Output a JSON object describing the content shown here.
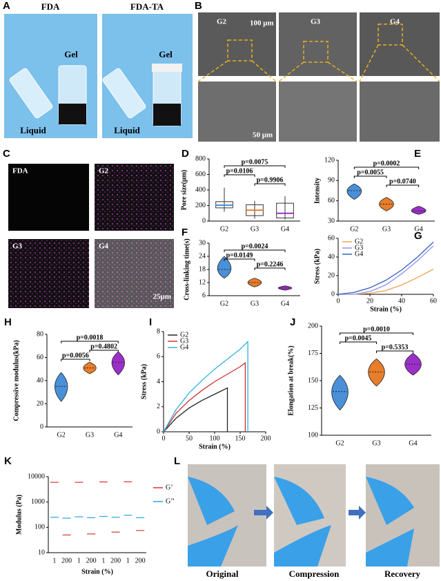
{
  "photos": {
    "A": {
      "label": "A",
      "titles": [
        "FDA",
        "FDA-TA"
      ],
      "texts": [
        "Gel",
        "Liquid",
        "Gel",
        "Liquid"
      ]
    },
    "B": {
      "label": "B",
      "titles": [
        "G2",
        "G3",
        "G4"
      ],
      "scale_bars": [
        "100 μm",
        "50 μm"
      ]
    },
    "C": {
      "label": "C",
      "titles": [
        "FDA",
        "G2",
        "G3",
        "G4"
      ],
      "scale_bar": "25μm"
    },
    "L": {
      "label": "L",
      "captions": [
        "Original",
        "Compression",
        "Recovery"
      ]
    }
  },
  "chart_data": [
    {
      "type": "box",
      "label": "D",
      "ylabel": "Pore size(μm)",
      "categories": [
        "G2",
        "G3",
        "G4"
      ],
      "colors": [
        "#4a90d9",
        "#e87d2a",
        "#9b30c8"
      ],
      "min": [
        120,
        30,
        20
      ],
      "q1": [
        170,
        70,
        40
      ],
      "median": [
        205,
        140,
        100
      ],
      "q3": [
        250,
        210,
        230
      ],
      "max": [
        430,
        260,
        320
      ],
      "ylim": [
        0,
        800
      ],
      "yticks": [
        0,
        200,
        400,
        600,
        800
      ],
      "annotations": [
        {
          "text": "p=0.0075",
          "pair": [
            "G2",
            "G4"
          ]
        },
        {
          "text": "p=0.0106",
          "pair": [
            "G2",
            "G3"
          ]
        },
        {
          "text": "p=0.9906",
          "pair": [
            "G3",
            "G4"
          ]
        }
      ]
    },
    {
      "type": "violin",
      "label": "E",
      "ylabel": "Intensity",
      "categories": [
        "G2",
        "G3",
        "G4"
      ],
      "colors": [
        "#4a90d9",
        "#e87d2a",
        "#9b30c8"
      ],
      "values": [
        75,
        55,
        45
      ],
      "low": [
        62,
        45,
        40
      ],
      "high": [
        85,
        65,
        52
      ],
      "ylim": [
        30,
        120
      ],
      "yticks": [
        30,
        60,
        90,
        120
      ],
      "annotations": [
        {
          "text": "p=0.0002",
          "pair": [
            "G2",
            "G4"
          ]
        },
        {
          "text": "p=0.0055",
          "pair": [
            "G2",
            "G3"
          ]
        },
        {
          "text": "p=0.0740",
          "pair": [
            "G3",
            "G4"
          ]
        }
      ]
    },
    {
      "type": "violin",
      "label": "F",
      "ylabel": "Cross-linking time(s)",
      "categories": [
        "G2",
        "G3",
        "G4"
      ],
      "colors": [
        "#4a90d9",
        "#e87d2a",
        "#9b30c8"
      ],
      "values": [
        18,
        12,
        9.5
      ],
      "low": [
        14,
        10,
        8.5
      ],
      "high": [
        24,
        14,
        10.5
      ],
      "ylim": [
        6,
        30
      ],
      "yticks": [
        6,
        12,
        18,
        24,
        30
      ],
      "annotations": [
        {
          "text": "p=0.0024",
          "pair": [
            "G2",
            "G4"
          ]
        },
        {
          "text": "p=0.0149",
          "pair": [
            "G2",
            "G3"
          ]
        },
        {
          "text": "p=0.2246",
          "pair": [
            "G3",
            "G4"
          ]
        }
      ]
    },
    {
      "type": "line",
      "label": "G",
      "xlabel": "Strain (%)",
      "ylabel": "Stress (kPa)",
      "legend": "upper-left",
      "x": [
        0,
        10,
        20,
        30,
        40,
        50,
        60
      ],
      "series": [
        {
          "name": "G2",
          "color": "#f0a050",
          "values": [
            0,
            0,
            1,
            4,
            10,
            18,
            27
          ]
        },
        {
          "name": "G3",
          "color": "#9090f0",
          "values": [
            0,
            0,
            3,
            10,
            22,
            36,
            52
          ]
        },
        {
          "name": "G4",
          "color": "#3060c0",
          "values": [
            0,
            2,
            7,
            15,
            26,
            40,
            56
          ]
        }
      ],
      "xlim": [
        0,
        60
      ],
      "xticks": [
        0,
        20,
        40,
        60
      ],
      "ylim": [
        0,
        60
      ],
      "yticks": [
        0,
        20,
        40,
        60
      ]
    },
    {
      "type": "violin",
      "label": "H",
      "ylabel": "Compressive modulus(kPa)",
      "categories": [
        "G2",
        "G3",
        "G4"
      ],
      "colors": [
        "#4a90d9",
        "#e87d2a",
        "#9b30c8"
      ],
      "values": [
        35,
        51,
        56
      ],
      "low": [
        22,
        46,
        45
      ],
      "high": [
        47,
        56,
        65
      ],
      "ylim": [
        0,
        80
      ],
      "yticks": [
        0,
        20,
        40,
        60,
        80
      ],
      "annotations": [
        {
          "text": "p=0.0018",
          "pair": [
            "G2",
            "G4"
          ]
        },
        {
          "text": "p=0.4802",
          "pair": [
            "G3",
            "G4"
          ]
        },
        {
          "text": "p=0.0056",
          "pair": [
            "G2",
            "G3"
          ]
        }
      ]
    },
    {
      "type": "line",
      "label": "I",
      "xlabel": "Strain (%)",
      "ylabel": "Stress (kPa)",
      "legend": "upper-left",
      "series": [
        {
          "name": "G2",
          "color": "#222222",
          "x": [
            0,
            25,
            50,
            75,
            100,
            125,
            125
          ],
          "values": [
            0,
            1.1,
            1.9,
            2.5,
            3.0,
            3.5,
            0
          ]
        },
        {
          "name": "G3",
          "color": "#d03030",
          "x": [
            0,
            25,
            50,
            75,
            100,
            125,
            150,
            160,
            160
          ],
          "values": [
            0,
            1.5,
            2.5,
            3.3,
            4.0,
            4.6,
            5.2,
            5.5,
            0
          ]
        },
        {
          "name": "G4",
          "color": "#30b0e0",
          "x": [
            0,
            25,
            50,
            75,
            100,
            125,
            150,
            165,
            165
          ],
          "values": [
            0,
            1.8,
            3.1,
            4.1,
            5.0,
            5.8,
            6.6,
            7.2,
            0
          ]
        }
      ],
      "xlim": [
        0,
        200
      ],
      "xticks": [
        0,
        50,
        100,
        150,
        200
      ],
      "ylim": [
        0,
        8
      ],
      "yticks": [
        0,
        2,
        4,
        6,
        8
      ]
    },
    {
      "type": "violin",
      "label": "J",
      "ylabel": "Elongation at break(%)",
      "categories": [
        "G2",
        "G3",
        "G4"
      ],
      "colors": [
        "#4a90d9",
        "#e87d2a",
        "#9b30c8"
      ],
      "values": [
        140,
        158,
        165
      ],
      "low": [
        123,
        145,
        155
      ],
      "high": [
        155,
        170,
        175
      ],
      "ylim": [
        100,
        200
      ],
      "yticks": [
        100,
        125,
        150,
        175,
        200
      ],
      "annotations": [
        {
          "text": "p=0.0010",
          "pair": [
            "G2",
            "G4"
          ]
        },
        {
          "text": "p=0.0045",
          "pair": [
            "G2",
            "G3"
          ]
        },
        {
          "text": "p=0.5353",
          "pair": [
            "G3",
            "G4"
          ]
        }
      ]
    },
    {
      "type": "dash",
      "label": "K",
      "xlabel": "Strain (%)",
      "ylabel": "Modulus (Pa)",
      "legend": "right",
      "log_y": true,
      "categories": [
        "1",
        "200",
        "1",
        "200",
        "1",
        "200",
        "1",
        "200"
      ],
      "series": [
        {
          "name": "G’",
          "color": "#e03030",
          "values": [
            6000,
            50,
            6000,
            55,
            6200,
            65,
            6300,
            75
          ]
        },
        {
          "name": "G’’",
          "color": "#20a8e0",
          "values": [
            250,
            230,
            260,
            240,
            270,
            250,
            300,
            240
          ]
        }
      ],
      "ylim": [
        10,
        10000
      ],
      "yticks": [
        10,
        100,
        1000,
        10000
      ]
    }
  ]
}
